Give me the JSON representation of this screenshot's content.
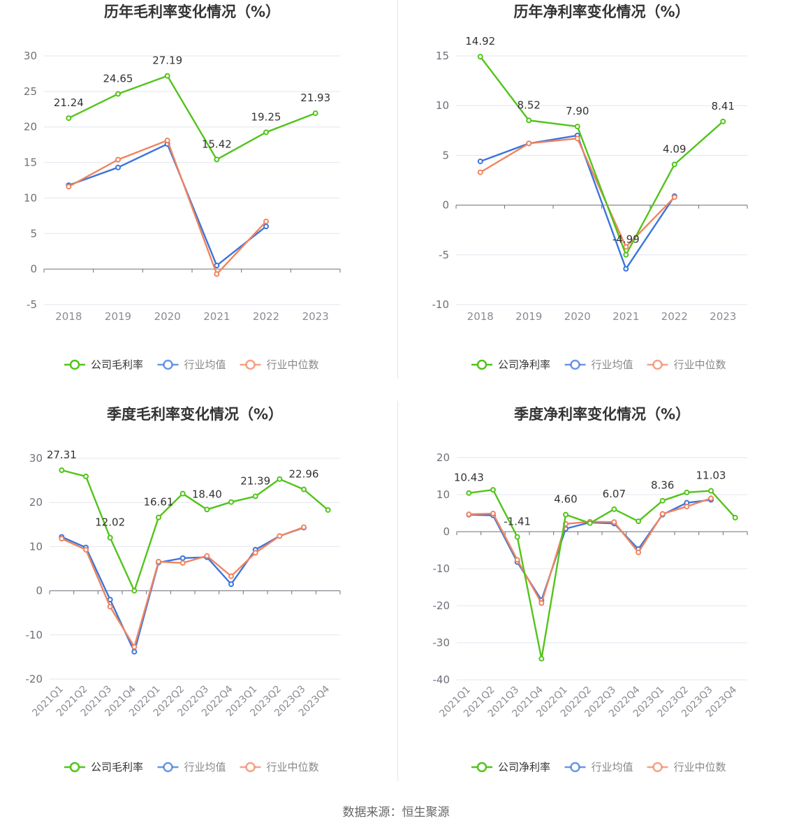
{
  "source_text": "数据来源：恒生聚源",
  "colors": {
    "company": "#52c41a",
    "avg": "#3b74db",
    "median": "#f0845f"
  },
  "chart_data": [
    {
      "type": "line",
      "title": "历年毛利率变化情况（%）",
      "categories": [
        "2018",
        "2019",
        "2020",
        "2021",
        "2022",
        "2023"
      ],
      "ylim": [
        -5,
        30
      ],
      "yticks": [
        -5,
        0,
        5,
        10,
        15,
        20,
        25,
        30
      ],
      "grid": true,
      "legend_position": "bottom",
      "rotate_x_labels": false,
      "series": [
        {
          "name": "公司毛利率",
          "key": "company",
          "values": [
            21.24,
            24.65,
            27.19,
            15.42,
            19.25,
            21.93
          ],
          "labels": [
            "21.24",
            "24.65",
            "27.19",
            "15.42",
            "19.25",
            "21.93"
          ]
        },
        {
          "name": "行业均值",
          "key": "avg",
          "values": [
            11.8,
            14.3,
            17.6,
            0.5,
            6.0,
            null
          ]
        },
        {
          "name": "行业中位数",
          "key": "median",
          "values": [
            11.6,
            15.4,
            18.1,
            -0.7,
            6.7,
            null
          ]
        }
      ]
    },
    {
      "type": "line",
      "title": "历年净利率变化情况（%）",
      "categories": [
        "2018",
        "2019",
        "2020",
        "2021",
        "2022",
        "2023"
      ],
      "ylim": [
        -10,
        15
      ],
      "yticks": [
        -10,
        -5,
        0,
        5,
        10,
        15
      ],
      "grid": true,
      "legend_position": "bottom",
      "rotate_x_labels": false,
      "series": [
        {
          "name": "公司净利率",
          "key": "company",
          "values": [
            14.92,
            8.52,
            7.9,
            -4.99,
            4.09,
            8.41
          ],
          "labels": [
            "14.92",
            "8.52",
            "7.90",
            "-4.99",
            "4.09",
            "8.41"
          ]
        },
        {
          "name": "行业均值",
          "key": "avg",
          "values": [
            4.4,
            6.2,
            7.0,
            -6.4,
            0.9,
            null
          ]
        },
        {
          "name": "行业中位数",
          "key": "median",
          "values": [
            3.3,
            6.2,
            6.7,
            -4.2,
            0.8,
            null
          ]
        }
      ]
    },
    {
      "type": "line",
      "title": "季度毛利率变化情况（%）",
      "categories": [
        "2021Q1",
        "2021Q2",
        "2021Q3",
        "2021Q4",
        "2022Q1",
        "2022Q2",
        "2022Q3",
        "2022Q4",
        "2023Q1",
        "2023Q2",
        "2023Q3",
        "2023Q4"
      ],
      "ylim": [
        -20,
        30
      ],
      "yticks": [
        -20,
        -10,
        0,
        10,
        20,
        30
      ],
      "grid": true,
      "legend_position": "bottom",
      "rotate_x_labels": true,
      "series": [
        {
          "name": "公司毛利率",
          "key": "company",
          "values": [
            27.31,
            25.9,
            12.02,
            0.0,
            16.61,
            22.0,
            18.4,
            20.1,
            21.39,
            25.3,
            22.96,
            18.3
          ],
          "labels": [
            "27.31",
            "",
            "12.02",
            "",
            "16.61",
            "",
            "18.40",
            "",
            "21.39",
            "",
            "22.96",
            ""
          ]
        },
        {
          "name": "行业均值",
          "key": "avg",
          "values": [
            12.2,
            9.8,
            -2.0,
            -13.8,
            6.4,
            7.4,
            7.6,
            1.5,
            9.3,
            12.4,
            14.3,
            null
          ]
        },
        {
          "name": "行业中位数",
          "key": "median",
          "values": [
            11.8,
            9.3,
            -3.6,
            -12.7,
            6.6,
            6.3,
            7.9,
            3.3,
            8.6,
            12.4,
            14.4,
            null
          ]
        }
      ]
    },
    {
      "type": "line",
      "title": "季度净利率变化情况（%）",
      "categories": [
        "2021Q1",
        "2021Q2",
        "2021Q3",
        "2021Q4",
        "2022Q1",
        "2022Q2",
        "2022Q3",
        "2022Q4",
        "2023Q1",
        "2023Q2",
        "2023Q3",
        "2023Q4"
      ],
      "ylim": [
        -40,
        20
      ],
      "yticks": [
        -40,
        -30,
        -20,
        -10,
        0,
        10,
        20
      ],
      "grid": true,
      "legend_position": "bottom",
      "rotate_x_labels": true,
      "series": [
        {
          "name": "公司净利率",
          "key": "company",
          "values": [
            10.43,
            11.3,
            -1.41,
            -34.3,
            4.6,
            2.3,
            6.07,
            2.8,
            8.36,
            10.6,
            11.03,
            3.8
          ],
          "labels": [
            "10.43",
            "",
            "-1.41",
            "",
            "4.60",
            "",
            "6.07",
            "",
            "8.36",
            "",
            "11.03",
            ""
          ]
        },
        {
          "name": "行业均值",
          "key": "avg",
          "values": [
            4.6,
            4.4,
            -8.2,
            -18.5,
            0.8,
            2.5,
            2.2,
            -4.7,
            4.6,
            7.8,
            8.6,
            null
          ]
        },
        {
          "name": "行业中位数",
          "key": "median",
          "values": [
            4.7,
            4.9,
            -7.6,
            -19.3,
            2.1,
            2.7,
            2.6,
            -5.6,
            4.8,
            6.8,
            9.0,
            null
          ]
        }
      ]
    }
  ]
}
